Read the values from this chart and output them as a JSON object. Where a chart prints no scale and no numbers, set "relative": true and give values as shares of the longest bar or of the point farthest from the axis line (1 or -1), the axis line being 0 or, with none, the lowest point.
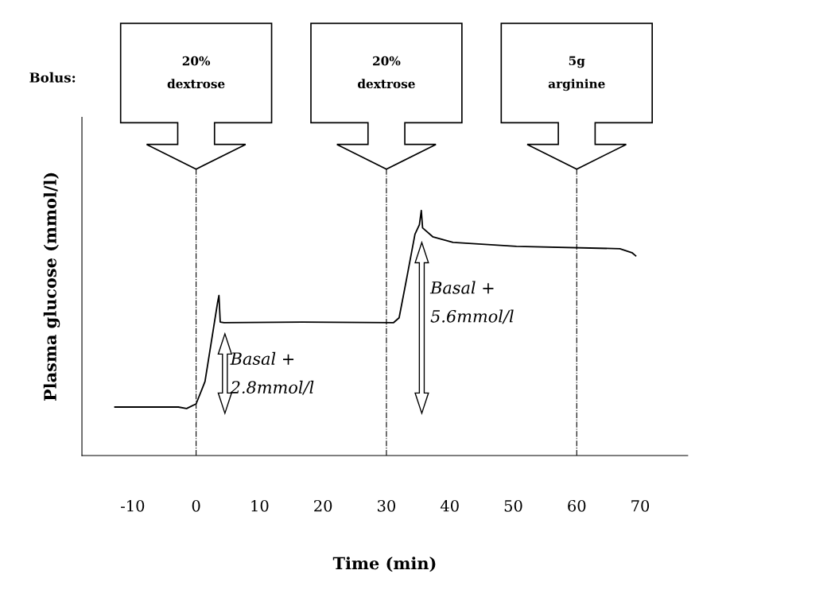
{
  "chart_data": {
    "type": "line",
    "relative": true,
    "xlabel": "Time (min)",
    "ylabel": "Plasma glucose (mmol/l)",
    "x": [
      -12.8,
      -2.8,
      -1.5,
      0,
      1.4,
      2.6,
      3.4,
      3.6,
      3.8,
      4.4,
      16.7,
      31.1,
      32.0,
      33.2,
      34.5,
      35.2,
      35.5,
      35.7,
      37.3,
      40.5,
      50.5,
      66.8,
      68.7,
      69.3
    ],
    "series": [
      {
        "color": "#000000",
        "values": [
          0.198,
          0.198,
          0.192,
          0.211,
          0.302,
          0.497,
          0.627,
          0.653,
          0.545,
          0.542,
          0.545,
          0.542,
          0.562,
          0.724,
          0.903,
          0.942,
          1.0,
          0.929,
          0.893,
          0.87,
          0.854,
          0.844,
          0.828,
          0.815
        ]
      }
    ],
    "xlim": [
      -18,
      77.5
    ],
    "xticks": [
      -10,
      0,
      10,
      20,
      30,
      40,
      50,
      60,
      70
    ],
    "ref_lines": [
      {
        "axis": "x",
        "value": 0,
        "line_style": "dashdot",
        "color": "#000000"
      },
      {
        "axis": "x",
        "value": 30,
        "line_style": "dashdot",
        "color": "#000000"
      },
      {
        "axis": "x",
        "value": 60,
        "line_style": "dashdot",
        "color": "#000000"
      }
    ],
    "annotations": [
      "Bolus:",
      "20%\ndextrose",
      "20%\ndextrose",
      "5g\narginine",
      "Basal +\n2.8mmol/l",
      "Basal +\n5.6mmol/l"
    ],
    "grid": false
  }
}
